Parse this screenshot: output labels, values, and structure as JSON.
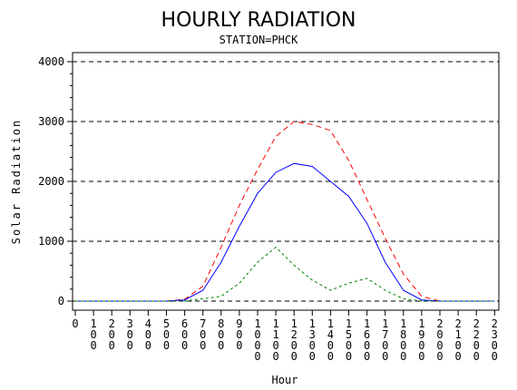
{
  "chart_data": {
    "type": "line",
    "title": "HOURLY RADIATION",
    "subtitle": "STATION=PHCK",
    "xlabel": "Hour",
    "ylabel": "Solar Radiation",
    "ylim": [
      0,
      4000
    ],
    "yticks": [
      0,
      1000,
      2000,
      3000,
      4000
    ],
    "ytick_labels": [
      "0",
      "1000",
      "2000",
      "3000",
      "4000"
    ],
    "grid": true,
    "x": [
      0,
      100,
      200,
      300,
      400,
      500,
      600,
      700,
      800,
      900,
      1000,
      1100,
      1200,
      1300,
      1400,
      1500,
      1600,
      1700,
      1800,
      1900,
      2000,
      2100,
      2200,
      2300
    ],
    "xtick_labels": [
      "0",
      "100",
      "200",
      "300",
      "400",
      "500",
      "600",
      "700",
      "800",
      "900",
      "1000",
      "1100",
      "1200",
      "1300",
      "1400",
      "1500",
      "1600",
      "1700",
      "1800",
      "1900",
      "2000",
      "2100",
      "2200",
      "2300"
    ],
    "series": [
      {
        "color": "#ff0000",
        "dash": "dashed",
        "values": [
          0,
          0,
          0,
          0,
          0,
          0,
          30,
          250,
          900,
          1600,
          2200,
          2750,
          3000,
          2950,
          2850,
          2350,
          1700,
          1050,
          450,
          80,
          0,
          0,
          0,
          0
        ]
      },
      {
        "color": "#0000ff",
        "dash": "solid",
        "values": [
          0,
          0,
          0,
          0,
          0,
          0,
          20,
          180,
          650,
          1250,
          1800,
          2150,
          2300,
          2250,
          2000,
          1750,
          1300,
          650,
          180,
          20,
          0,
          0,
          0,
          0
        ]
      },
      {
        "color": "#008000",
        "dash": "dotted",
        "values": [
          0,
          0,
          0,
          0,
          0,
          0,
          0,
          40,
          80,
          300,
          650,
          900,
          600,
          350,
          180,
          300,
          380,
          180,
          40,
          0,
          0,
          0,
          0,
          0
        ]
      }
    ]
  }
}
